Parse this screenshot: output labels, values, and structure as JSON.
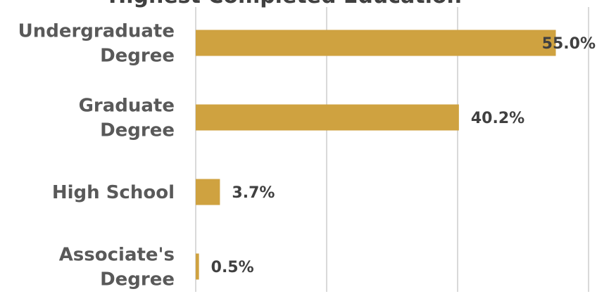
{
  "chart_data": {
    "type": "bar",
    "orientation": "horizontal",
    "title": "Highest Completed Education",
    "categories": [
      "Undergraduate\nDegree",
      "Graduate\nDegree",
      "High School",
      "Associate's\nDegree"
    ],
    "values": [
      55.0,
      40.2,
      3.7,
      0.5
    ],
    "value_labels": [
      "55.0%",
      "40.2%",
      "3.7%",
      "0.5%"
    ],
    "xlim": [
      0,
      60
    ],
    "grid": true,
    "bar_color": "#CFA240",
    "grid_color": "#D9D9D9"
  }
}
